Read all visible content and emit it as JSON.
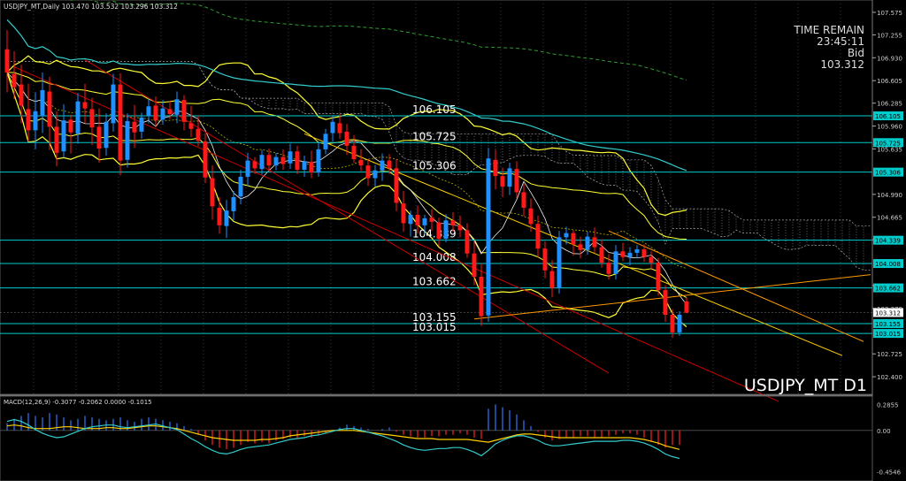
{
  "header": {
    "symbol_info": "USDJPY_MT,Daily 103.470 103.532 103.296 103.312"
  },
  "info_panel": {
    "time_remain_label": "TIME REMAIN",
    "time_remain_value": "23:45:11",
    "bid_label": "Bid",
    "bid_value": "103.312"
  },
  "watermark": "USDJPY_MT D1",
  "colors": {
    "background": "#000000",
    "bull": "#1e90ff",
    "bear": "#ff1a1a",
    "ichimoku_cloud": "#c8c8c8",
    "bollinger": "#ffff33",
    "ma_cyan": "#33cccc",
    "trend_red": "#cc0000",
    "trend_orange": "#ff9900",
    "trend_yellow": "#ffd000",
    "hline": "#00cccc",
    "macd_hist_pos": "#3377ff",
    "macd_hist_neg": "#ff2222",
    "macd_signal": "#ffd000",
    "macd_line": "#33cccc"
  },
  "hlines": [
    {
      "label": "106.105",
      "tag": "106.105",
      "price": 106.105
    },
    {
      "label": "105.725",
      "tag": "105.725",
      "price": 105.725
    },
    {
      "label": "105.306",
      "tag": "105.306",
      "price": 105.306
    },
    {
      "label": "104.339",
      "tag": "104.339",
      "price": 104.339
    },
    {
      "label": "104.008",
      "tag": "104.008",
      "price": 104.008
    },
    {
      "label": "103.662",
      "tag": "103.662",
      "price": 103.662
    },
    {
      "label": "103.155",
      "tag": "103.155",
      "price": 103.155
    },
    {
      "label": "103.015",
      "tag": "103.015",
      "price": 103.015
    }
  ],
  "current_price_tag": "103.312",
  "chart_data": [
    {
      "type": "candlestick",
      "title": "USDJPY_MT,Daily",
      "y_axis": {
        "ticks": [
          "107.575",
          "107.255",
          "106.930",
          "106.605",
          "106.285",
          "105.960",
          "105.635",
          "104.990",
          "104.665",
          "104.345",
          "103.695",
          "103.370",
          "102.725",
          "102.400"
        ],
        "ylim": [
          102.15,
          107.75
        ]
      },
      "last_ohlc": {
        "open": 103.47,
        "high": 103.532,
        "low": 103.296,
        "close": 103.312
      },
      "candles": [
        [
          107.05,
          107.32,
          106.44,
          106.72
        ],
        [
          106.7,
          107.02,
          106.34,
          106.51
        ],
        [
          106.55,
          106.83,
          106.0,
          106.25
        ],
        [
          106.2,
          106.56,
          105.74,
          105.9
        ],
        [
          105.9,
          106.44,
          105.63,
          106.17
        ],
        [
          106.1,
          106.72,
          105.86,
          106.47
        ],
        [
          106.45,
          106.66,
          105.62,
          105.95
        ],
        [
          105.95,
          106.17,
          105.39,
          105.58
        ],
        [
          105.6,
          106.27,
          105.51,
          106.04
        ],
        [
          106.05,
          106.12,
          105.57,
          105.87
        ],
        [
          105.85,
          106.43,
          105.71,
          106.31
        ],
        [
          106.3,
          106.56,
          106.0,
          106.21
        ],
        [
          106.2,
          106.36,
          105.69,
          105.94
        ],
        [
          105.95,
          106.21,
          105.44,
          105.64
        ],
        [
          105.65,
          106.14,
          105.54,
          106.02
        ],
        [
          106.0,
          106.7,
          105.88,
          106.55
        ],
        [
          106.55,
          106.71,
          105.26,
          105.47
        ],
        [
          105.48,
          106.14,
          105.37,
          106.03
        ],
        [
          106.02,
          106.26,
          105.65,
          105.87
        ],
        [
          105.88,
          106.15,
          105.78,
          106.08
        ],
        [
          106.1,
          106.35,
          106.0,
          106.24
        ],
        [
          106.25,
          106.38,
          105.94,
          106.04
        ],
        [
          106.05,
          106.33,
          105.98,
          106.21
        ],
        [
          106.2,
          106.32,
          106.06,
          106.13
        ],
        [
          106.12,
          106.45,
          106.0,
          106.34
        ],
        [
          106.33,
          106.4,
          105.9,
          106.02
        ],
        [
          106.0,
          106.25,
          105.8,
          105.92
        ],
        [
          105.92,
          106.11,
          105.67,
          105.75
        ],
        [
          105.74,
          105.86,
          105.15,
          105.23
        ],
        [
          105.22,
          105.4,
          104.63,
          104.82
        ],
        [
          104.8,
          104.95,
          104.43,
          104.55
        ],
        [
          104.54,
          104.91,
          104.37,
          104.76
        ],
        [
          104.75,
          105.04,
          104.62,
          104.95
        ],
        [
          104.96,
          105.34,
          104.85,
          105.24
        ],
        [
          105.24,
          105.58,
          105.11,
          105.47
        ],
        [
          105.46,
          105.52,
          105.28,
          105.36
        ],
        [
          105.35,
          105.62,
          105.27,
          105.55
        ],
        [
          105.55,
          105.64,
          105.31,
          105.4
        ],
        [
          105.4,
          105.58,
          105.33,
          105.52
        ],
        [
          105.52,
          105.63,
          105.34,
          105.42
        ],
        [
          105.43,
          105.71,
          105.35,
          105.6
        ],
        [
          105.6,
          105.68,
          105.28,
          105.34
        ],
        [
          105.34,
          105.54,
          105.24,
          105.46
        ],
        [
          105.45,
          105.61,
          105.22,
          105.3
        ],
        [
          105.3,
          105.72,
          105.24,
          105.63
        ],
        [
          105.63,
          105.92,
          105.56,
          105.85
        ],
        [
          105.86,
          106.1,
          105.74,
          106.02
        ],
        [
          106.0,
          106.13,
          105.78,
          105.86
        ],
        [
          105.88,
          105.99,
          105.55,
          105.68
        ],
        [
          105.68,
          105.83,
          105.44,
          105.49
        ],
        [
          105.48,
          105.63,
          105.32,
          105.4
        ],
        [
          105.4,
          105.49,
          105.11,
          105.22
        ],
        [
          105.22,
          105.41,
          105.1,
          105.33
        ],
        [
          105.33,
          105.57,
          105.18,
          105.47
        ],
        [
          105.47,
          105.56,
          105.28,
          105.36
        ],
        [
          105.36,
          105.49,
          104.75,
          104.87
        ],
        [
          104.86,
          105.04,
          104.46,
          104.58
        ],
        [
          104.57,
          104.76,
          104.39,
          104.7
        ],
        [
          104.7,
          104.83,
          104.43,
          104.55
        ],
        [
          104.55,
          104.7,
          104.42,
          104.65
        ],
        [
          104.66,
          104.78,
          104.47,
          104.6
        ],
        [
          104.59,
          104.66,
          104.25,
          104.36
        ],
        [
          104.36,
          104.71,
          104.31,
          104.62
        ],
        [
          104.62,
          104.74,
          104.46,
          104.55
        ],
        [
          104.55,
          104.69,
          104.38,
          104.48
        ],
        [
          104.48,
          104.58,
          104.09,
          104.15
        ],
        [
          104.15,
          104.33,
          103.7,
          103.82
        ],
        [
          103.82,
          104.01,
          103.12,
          103.26
        ],
        [
          103.27,
          105.65,
          103.18,
          105.5
        ],
        [
          105.48,
          105.62,
          105.06,
          105.25
        ],
        [
          105.25,
          105.37,
          104.95,
          105.1
        ],
        [
          105.1,
          105.44,
          104.98,
          105.36
        ],
        [
          105.35,
          105.46,
          104.94,
          105.02
        ],
        [
          105.02,
          105.14,
          104.68,
          104.8
        ],
        [
          104.79,
          104.93,
          104.46,
          104.57
        ],
        [
          104.57,
          104.69,
          104.1,
          104.22
        ],
        [
          104.22,
          104.32,
          103.8,
          103.91
        ],
        [
          103.9,
          104.06,
          103.53,
          103.66
        ],
        [
          103.66,
          104.47,
          103.58,
          104.38
        ],
        [
          104.38,
          104.53,
          104.28,
          104.44
        ],
        [
          104.44,
          104.48,
          104.12,
          104.28
        ],
        [
          104.28,
          104.39,
          104.08,
          104.2
        ],
        [
          104.2,
          104.46,
          104.13,
          104.39
        ],
        [
          104.38,
          104.52,
          104.16,
          104.24
        ],
        [
          104.24,
          104.35,
          103.95,
          104.02
        ],
        [
          104.02,
          104.14,
          103.78,
          103.86
        ],
        [
          103.86,
          104.27,
          103.78,
          104.18
        ],
        [
          104.18,
          104.3,
          104.04,
          104.1
        ],
        [
          104.1,
          104.24,
          103.98,
          104.16
        ],
        [
          104.16,
          104.27,
          104.08,
          104.21
        ],
        [
          104.21,
          104.28,
          104.03,
          104.1
        ],
        [
          104.1,
          104.18,
          103.92,
          104.02
        ],
        [
          104.02,
          104.09,
          103.55,
          103.63
        ],
        [
          103.63,
          103.7,
          103.18,
          103.28
        ],
        [
          103.28,
          103.36,
          102.95,
          103.03
        ],
        [
          103.03,
          103.33,
          102.98,
          103.28
        ],
        [
          103.47,
          103.53,
          103.3,
          103.31
        ]
      ]
    },
    {
      "type": "macd",
      "title": "MACD(12,26,9) -0.3077 -0.2062 0.0000 -0.1015",
      "y_axis": {
        "ticks": [
          "0.2855",
          "0.00",
          "-0.4546"
        ],
        "ylim": [
          -0.52,
          0.34
        ]
      },
      "histogram": [
        0.05,
        0.08,
        0.1,
        0.12,
        0.1,
        0.09,
        0.12,
        0.11,
        0.09,
        0.07,
        0.08,
        0.1,
        0.09,
        0.08,
        0.07,
        0.08,
        0.09,
        0.07,
        0.06,
        0.08,
        0.09,
        0.08,
        0.07,
        0.06,
        0.05,
        0.03,
        0.01,
        -0.03,
        -0.07,
        -0.1,
        -0.12,
        -0.13,
        -0.12,
        -0.1,
        -0.08,
        -0.09,
        -0.08,
        -0.09,
        -0.07,
        -0.06,
        -0.05,
        -0.06,
        -0.04,
        -0.05,
        -0.03,
        -0.02,
        -0.01,
        0.02,
        0.04,
        0.03,
        0.02,
        0.01,
        0.0,
        0.01,
        0.02,
        -0.01,
        -0.03,
        -0.04,
        -0.05,
        -0.05,
        -0.04,
        -0.04,
        -0.03,
        -0.03,
        -0.02,
        -0.03,
        -0.05,
        -0.06,
        0.15,
        0.18,
        0.16,
        0.14,
        0.11,
        0.07,
        0.03,
        -0.01,
        -0.05,
        -0.07,
        -0.06,
        -0.05,
        -0.05,
        -0.04,
        -0.04,
        -0.05,
        -0.05,
        -0.04,
        -0.03,
        -0.02,
        -0.02,
        -0.03,
        -0.05,
        -0.08,
        -0.1,
        -0.12,
        -0.1,
        -0.1
      ],
      "signal": [
        0.05,
        0.06,
        0.05,
        0.03,
        0.02,
        0.02,
        0.02,
        0.03,
        0.04,
        0.04,
        0.03,
        0.02,
        0.02,
        0.02,
        0.03,
        0.03,
        0.02,
        0.02,
        0.03,
        0.04,
        0.05,
        0.05,
        0.04,
        0.03,
        0.02,
        0.0,
        -0.02,
        -0.04,
        -0.06,
        -0.08,
        -0.09,
        -0.1,
        -0.11,
        -0.11,
        -0.11,
        -0.11,
        -0.1,
        -0.1,
        -0.09,
        -0.08,
        -0.06,
        -0.05,
        -0.04,
        -0.03,
        -0.02,
        -0.01,
        0.0,
        0.0,
        0.0,
        0.0,
        -0.01,
        -0.02,
        -0.03,
        -0.04,
        -0.05,
        -0.06,
        -0.07,
        -0.08,
        -0.09,
        -0.09,
        -0.09,
        -0.1,
        -0.1,
        -0.1,
        -0.1,
        -0.1,
        -0.11,
        -0.12,
        -0.13,
        -0.11,
        -0.09,
        -0.07,
        -0.05,
        -0.04,
        -0.04,
        -0.05,
        -0.06,
        -0.07,
        -0.08,
        -0.08,
        -0.08,
        -0.08,
        -0.08,
        -0.08,
        -0.08,
        -0.08,
        -0.08,
        -0.08,
        -0.08,
        -0.09,
        -0.1,
        -0.12,
        -0.14,
        -0.17,
        -0.19,
        -0.21
      ],
      "macd": [
        0.1,
        0.12,
        0.1,
        0.06,
        0.01,
        -0.03,
        -0.06,
        -0.08,
        -0.07,
        -0.04,
        -0.01,
        0.02,
        0.04,
        0.05,
        0.06,
        0.06,
        0.04,
        0.03,
        0.04,
        0.05,
        0.06,
        0.07,
        0.05,
        0.03,
        0.01,
        -0.04,
        -0.09,
        -0.13,
        -0.18,
        -0.22,
        -0.25,
        -0.26,
        -0.24,
        -0.21,
        -0.19,
        -0.18,
        -0.17,
        -0.16,
        -0.14,
        -0.12,
        -0.1,
        -0.09,
        -0.08,
        -0.06,
        -0.05,
        -0.03,
        -0.01,
        0.01,
        0.02,
        0.02,
        0.0,
        -0.02,
        -0.04,
        -0.06,
        -0.09,
        -0.12,
        -0.16,
        -0.19,
        -0.21,
        -0.22,
        -0.21,
        -0.2,
        -0.2,
        -0.19,
        -0.19,
        -0.21,
        -0.24,
        -0.28,
        -0.22,
        -0.15,
        -0.11,
        -0.08,
        -0.06,
        -0.06,
        -0.08,
        -0.11,
        -0.15,
        -0.17,
        -0.17,
        -0.16,
        -0.15,
        -0.14,
        -0.13,
        -0.12,
        -0.12,
        -0.12,
        -0.12,
        -0.11,
        -0.11,
        -0.12,
        -0.14,
        -0.17,
        -0.21,
        -0.26,
        -0.29,
        -0.31
      ]
    }
  ]
}
